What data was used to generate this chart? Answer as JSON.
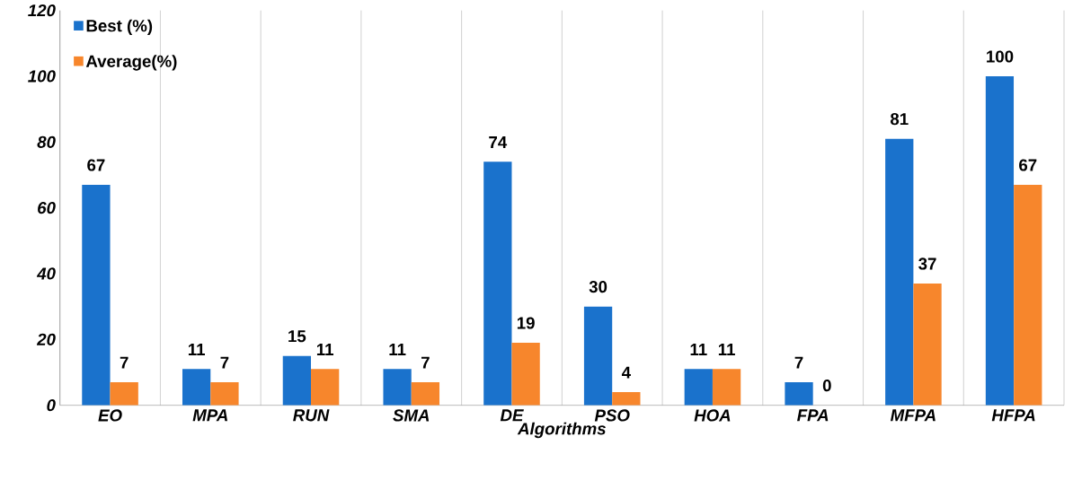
{
  "chart_data": {
    "type": "bar",
    "xlabel": "Algorithms",
    "categories": [
      "EO",
      "MPA",
      "RUN",
      "SMA",
      "DE",
      "PSO",
      "HOA",
      "FPA",
      "MFPA",
      "HFPA"
    ],
    "series": [
      {
        "name": "Best (%)",
        "color": "#1a72cc",
        "values": [
          67,
          11,
          15,
          11,
          74,
          30,
          11,
          7,
          81,
          100
        ]
      },
      {
        "name": "Average(%)",
        "color": "#f7862c",
        "values": [
          7,
          7,
          11,
          7,
          19,
          4,
          11,
          0,
          37,
          67
        ]
      }
    ],
    "ylim": [
      0,
      120
    ],
    "yticks": [
      0,
      20,
      40,
      60,
      80,
      100,
      120
    ],
    "grid": "x",
    "legend": "top left",
    "data_labels": true
  }
}
